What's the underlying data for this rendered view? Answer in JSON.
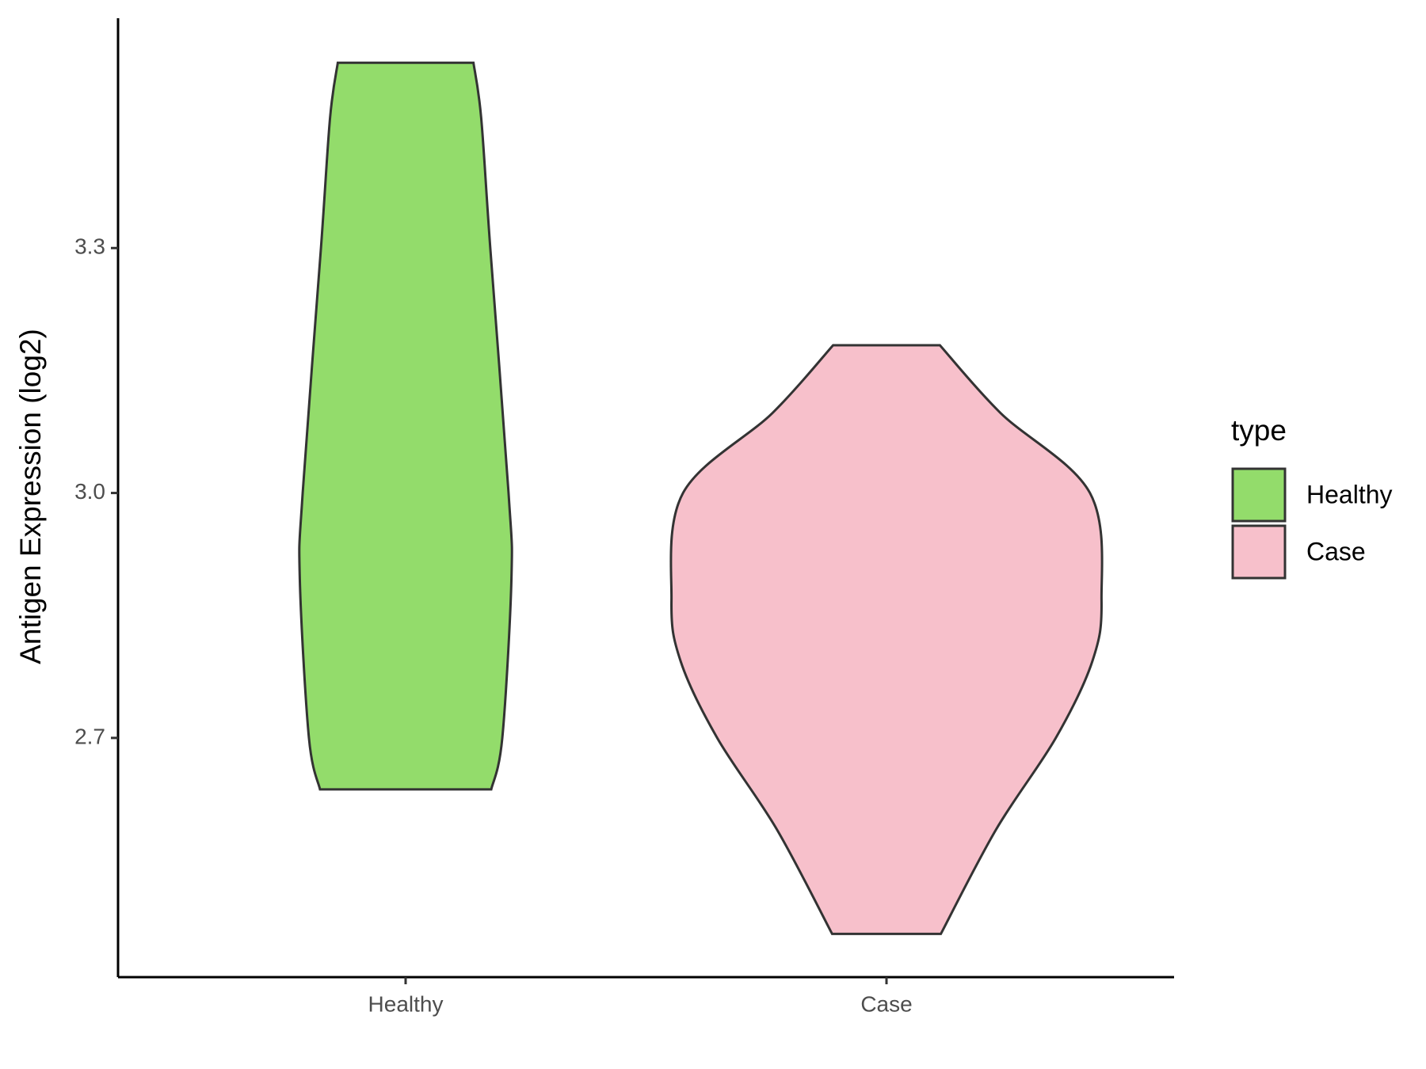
{
  "chart_data": {
    "type": "violin",
    "y_label": "Antigen Expression (log2)",
    "categories": [
      "Healthy",
      "Case"
    ],
    "series": [
      {
        "name": "Healthy",
        "color": "#93dc6b",
        "values": [
          3.527,
          3.46,
          3.3,
          3.0,
          2.895,
          2.7,
          2.637
        ],
        "widths": [
          0.141,
          0.157,
          0.176,
          0.214,
          0.22,
          0.201,
          0.178
        ]
      },
      {
        "name": "Case",
        "color": "#f7c0cb",
        "values": [
          3.181,
          3.098,
          3.0,
          2.869,
          2.794,
          2.7,
          2.588,
          2.46
        ],
        "widths": [
          0.111,
          0.237,
          0.423,
          0.447,
          0.428,
          0.352,
          0.228,
          0.113
        ]
      }
    ],
    "ylim": [
      2.407,
      3.5815
    ],
    "yticks": [
      2.7,
      {
        "value": 3,
        "label": "3.0"
      },
      3.3
    ],
    "legend_title": "type",
    "legend": "right"
  }
}
